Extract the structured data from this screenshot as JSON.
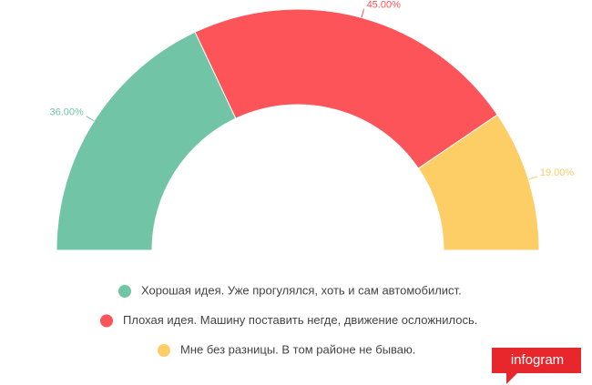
{
  "chart_data": {
    "type": "semidonut",
    "categories": [
      "Хорошая идея. Уже прогулялся, хоть и сам автомобилист.",
      "Плохая идея. Машину поставить негде, движение осложнилось.",
      "Мне без разницы. В том районе не бываю."
    ],
    "values": [
      36,
      45,
      19
    ],
    "value_labels": [
      "36.00%",
      "45.00%",
      "19.00%"
    ],
    "colors": [
      "#72c4a7",
      "#fd5459",
      "#fdcd66"
    ]
  },
  "branding": "infogram"
}
